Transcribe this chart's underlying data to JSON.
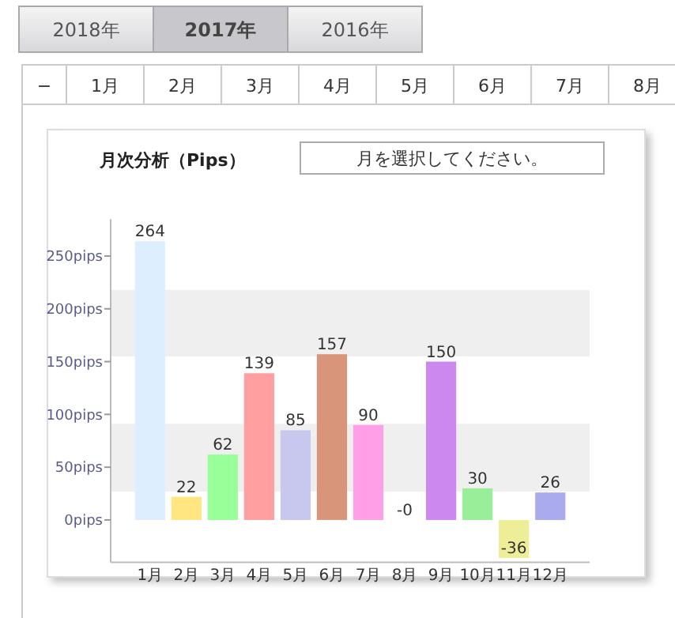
{
  "chart_data": {
    "type": "bar",
    "title": "月次分析（Pips）",
    "categories": [
      "1月",
      "2月",
      "3月",
      "4月",
      "5月",
      "6月",
      "7月",
      "8月",
      "9月",
      "10月",
      "11月",
      "12月"
    ],
    "values": [
      264,
      22,
      62,
      139,
      85,
      157,
      90,
      0,
      150,
      30,
      -36,
      26
    ],
    "value_labels": [
      "264",
      "22",
      "62",
      "139",
      "85",
      "157",
      "90",
      "-0",
      "150",
      "30",
      "-36",
      "26"
    ],
    "colors": [
      "#ddeeff",
      "#ffe680",
      "#99ff99",
      "#ff9f9f",
      "#c8c8ee",
      "#d9957a",
      "#ff9fe8",
      "#cccccc",
      "#cc88ee",
      "#99ee99",
      "#eeee99",
      "#aaaaee"
    ],
    "ylim": [
      -40,
      285
    ],
    "yticks": [
      {
        "value": 0,
        "label": "0pips"
      },
      {
        "value": 50,
        "label": "50pips"
      },
      {
        "value": 100,
        "label": "100pips"
      },
      {
        "value": 150,
        "label": "150pips"
      },
      {
        "value": 200,
        "label": "200pips"
      },
      {
        "value": 250,
        "label": "250pips"
      }
    ],
    "bands": [
      {
        "axis": "y",
        "from": 27,
        "to": 91,
        "color": "#efefef"
      },
      {
        "axis": "y",
        "from": 155,
        "to": 218,
        "color": "#efefef"
      }
    ],
    "grid": false,
    "annotations": [
      "2018年",
      "2017年",
      "2016年",
      "−",
      "1月",
      "2月",
      "3月",
      "4月",
      "5月",
      "6月",
      "7月",
      "8月",
      "月を選択してください。"
    ]
  }
}
